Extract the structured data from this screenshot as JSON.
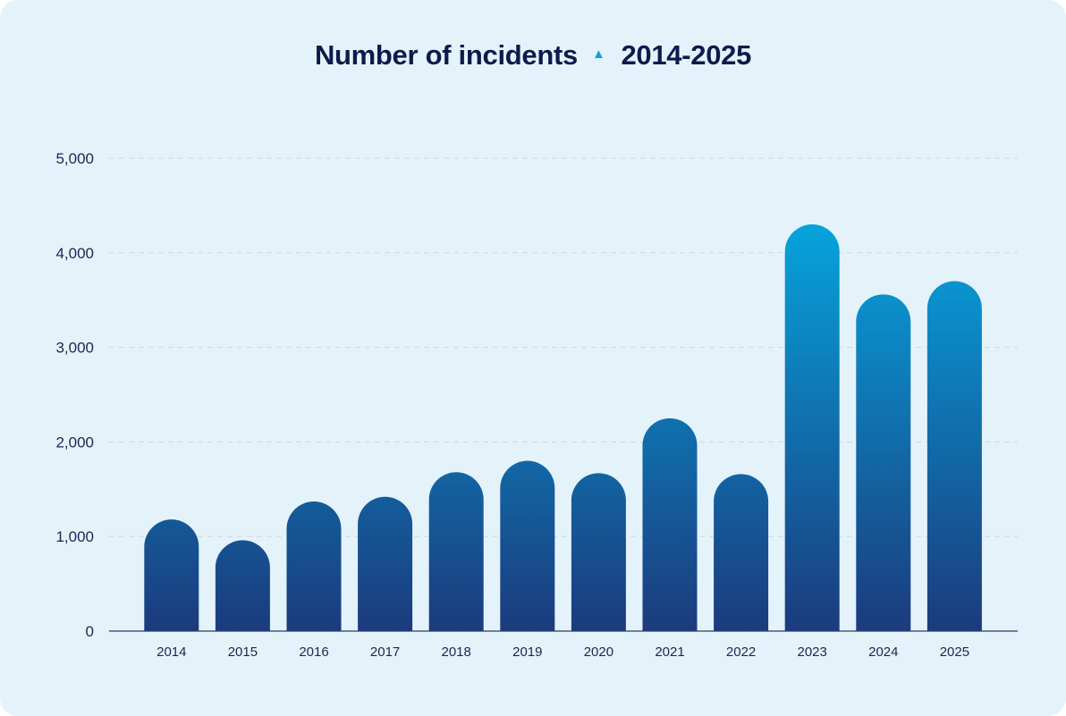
{
  "chart_data": {
    "type": "bar",
    "title": "Number of incidents",
    "title_marker": "▲",
    "subtitle": "2014-2025",
    "xlabel": "",
    "ylabel": "",
    "categories": [
      "2014",
      "2015",
      "2016",
      "2017",
      "2018",
      "2019",
      "2020",
      "2021",
      "2022",
      "2023",
      "2024",
      "2025"
    ],
    "values": [
      1180,
      960,
      1370,
      1420,
      1680,
      1800,
      1670,
      2250,
      1660,
      4300,
      3560,
      3700
    ],
    "ylim": [
      0,
      5000
    ],
    "yticks": [
      0,
      1000,
      2000,
      3000,
      4000,
      5000
    ],
    "ytick_labels": [
      "0",
      "1,000",
      "2,000",
      "3,000",
      "4,000",
      "5,000"
    ],
    "grid": true,
    "legend": "none",
    "colors": {
      "bar_bottom": "#1b3b7d",
      "bar_top_max": "#06a3dc",
      "title": "#0d1b4c",
      "marker": "#0aa2dd",
      "axis_text": "#1a2750",
      "grid": "#c4dbe8",
      "baseline": "#2a3b66",
      "background": "#e4f3fa"
    }
  }
}
